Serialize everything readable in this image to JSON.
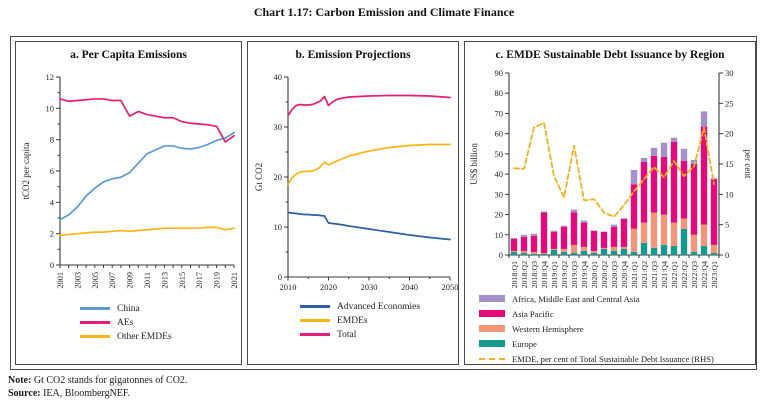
{
  "page": {
    "title": "Chart 1.17: Carbon Emission and Climate Finance",
    "note_label": "Note:",
    "note_text": "Gt CO2 stands for gigatonnes of CO2.",
    "source_label": "Source:",
    "source_text": "IEA, BloombergNEF."
  },
  "chart_data": [
    {
      "id": "per_capita_emissions",
      "type": "line",
      "title": "a. Per Capita Emissions",
      "ylabel": "tCO2 per capita",
      "ylim": [
        0,
        12
      ],
      "ytick_labels": [
        "0",
        "2",
        "4",
        "6",
        "8",
        "10",
        "12"
      ],
      "x": [
        2001,
        2002,
        2003,
        2004,
        2005,
        2006,
        2007,
        2008,
        2009,
        2010,
        2011,
        2012,
        2013,
        2014,
        2015,
        2016,
        2017,
        2018,
        2019,
        2020,
        2021
      ],
      "xtick_labels": [
        "2001",
        "2003",
        "2005",
        "2007",
        "2009",
        "2011",
        "2013",
        "2015",
        "2017",
        "2019",
        "2021"
      ],
      "legend_position": "bottom",
      "series": [
        {
          "name": "China",
          "color": "#5B9BD5",
          "values": [
            2.9,
            3.2,
            3.7,
            4.4,
            4.9,
            5.3,
            5.5,
            5.6,
            5.9,
            6.5,
            7.1,
            7.35,
            7.6,
            7.6,
            7.45,
            7.4,
            7.5,
            7.7,
            7.95,
            8.1,
            8.45
          ]
        },
        {
          "name": "AEs",
          "color": "#E61E78",
          "values": [
            10.6,
            10.45,
            10.5,
            10.55,
            10.6,
            10.6,
            10.5,
            10.5,
            9.5,
            9.8,
            9.6,
            9.5,
            9.4,
            9.4,
            9.15,
            9.05,
            9.0,
            8.95,
            8.85,
            7.85,
            8.25
          ]
        },
        {
          "name": "Other EMDEs",
          "color": "#FBB616",
          "values": [
            1.9,
            1.95,
            2.0,
            2.05,
            2.1,
            2.1,
            2.15,
            2.2,
            2.15,
            2.2,
            2.25,
            2.3,
            2.35,
            2.35,
            2.35,
            2.35,
            2.35,
            2.4,
            2.4,
            2.25,
            2.35
          ]
        }
      ]
    },
    {
      "id": "emission_projections",
      "type": "line",
      "title": "b. Emission Projections",
      "ylabel": "Gt CO2",
      "ylim": [
        0,
        40
      ],
      "ytick_labels": [
        "0",
        "10",
        "20",
        "30",
        "40"
      ],
      "x": [
        2010,
        2011,
        2012,
        2013,
        2014,
        2015,
        2016,
        2017,
        2018,
        2019,
        2020,
        2021,
        2022,
        2023,
        2025,
        2030,
        2035,
        2040,
        2045,
        2050
      ],
      "xtick_labels": [
        "2010",
        "2020",
        "2030",
        "2040",
        "2050"
      ],
      "legend_position": "bottom",
      "series": [
        {
          "name": "Advanced Economies",
          "color": "#2E5FA3",
          "values": [
            12.9,
            12.8,
            12.7,
            12.6,
            12.5,
            12.5,
            12.4,
            12.4,
            12.3,
            12.2,
            10.8,
            10.7,
            10.6,
            10.5,
            10.2,
            9.6,
            9.0,
            8.4,
            7.9,
            7.5
          ]
        },
        {
          "name": "EMDEs",
          "color": "#FBB616",
          "values": [
            18.5,
            19.8,
            20.6,
            21.0,
            21.1,
            21.1,
            21.2,
            21.5,
            22.0,
            23.0,
            22.4,
            22.8,
            23.2,
            23.5,
            24.2,
            25.2,
            25.9,
            26.3,
            26.5,
            26.5
          ]
        },
        {
          "name": "Total",
          "color": "#E61E78",
          "values": [
            32.3,
            33.5,
            34.3,
            34.5,
            34.4,
            34.4,
            34.5,
            34.8,
            35.2,
            36.1,
            34.3,
            35.0,
            35.5,
            35.7,
            36.0,
            36.2,
            36.3,
            36.3,
            36.2,
            35.9
          ]
        }
      ]
    },
    {
      "id": "emde_sustainable_debt",
      "type": "stacked_bar_line",
      "title": "c. EMDE Sustainable Debt Issuance by Region",
      "ylabel_left": "US$ billion",
      "ylabel_right": "per cent",
      "ylim_left": [
        0,
        90
      ],
      "ylim_right": [
        0,
        30
      ],
      "ytick_labels_left": [
        "0",
        "10",
        "20",
        "30",
        "40",
        "50",
        "60",
        "70",
        "80",
        "90"
      ],
      "ytick_labels_right": [
        "0",
        "5",
        "10",
        "15",
        "20",
        "25",
        "30"
      ],
      "categories": [
        "2018:Q1",
        "2018:Q2",
        "2018:Q3",
        "2018:Q4",
        "2019:Q1",
        "2019:Q2",
        "2019:Q3",
        "2019:Q4",
        "2020:Q1",
        "2020:Q2",
        "2020:Q3",
        "2020:Q4",
        "2021:Q1",
        "2021:Q2",
        "2021:Q3",
        "2021:Q4",
        "2022:Q1",
        "2022:Q2",
        "2022:Q3",
        "2022:Q4",
        "2023:Q1"
      ],
      "legend_position": "bottom",
      "series": [
        {
          "name": "Africa, Middle East and Central Asia",
          "color": "#A391C8",
          "values": [
            0.5,
            1.0,
            1.0,
            0.5,
            0.5,
            0.5,
            1.5,
            1.0,
            0.0,
            0.0,
            1.0,
            0.0,
            7.0,
            2.0,
            4.0,
            7.0,
            2.0,
            6.0,
            2.0,
            7.5,
            0.5
          ]
        },
        {
          "name": "Asia Pacific",
          "color": "#E4097D",
          "values": [
            6.0,
            7.0,
            8.0,
            20.0,
            8.5,
            11.0,
            16.0,
            12.0,
            10.0,
            8.0,
            10.0,
            14.0,
            22.0,
            30.0,
            28.0,
            28.5,
            40.0,
            28.5,
            35.0,
            48.5,
            32.5
          ]
        },
        {
          "name": "Western Hemisphere",
          "color": "#F29579",
          "values": [
            0.5,
            1.0,
            1.0,
            0.5,
            0.5,
            1.5,
            4.0,
            2.0,
            1.0,
            0.5,
            2.0,
            1.0,
            11.5,
            10.0,
            17.5,
            15.0,
            11.5,
            5.0,
            8.5,
            10.5,
            4.0
          ]
        },
        {
          "name": "Europe",
          "color": "#169A8F",
          "values": [
            1.5,
            1.0,
            0.5,
            0.5,
            2.5,
            1.5,
            1.0,
            2.0,
            1.0,
            3.0,
            2.0,
            3.0,
            1.5,
            6.0,
            3.5,
            5.0,
            4.5,
            13.0,
            1.5,
            4.5,
            1.0
          ]
        }
      ],
      "line": {
        "name": "EMDE, per cent of Total Sustainable Debt Issuance (RHS)",
        "color": "#F2B21D",
        "style": "dashed",
        "axis": "right",
        "values": [
          14.3,
          14.2,
          21.0,
          21.8,
          13.0,
          9.5,
          18.0,
          9.0,
          9.2,
          7.0,
          6.3,
          8.2,
          10.5,
          12.5,
          14.5,
          12.8,
          15.5,
          13.0,
          14.6,
          21.0,
          11.7
        ]
      }
    }
  ]
}
